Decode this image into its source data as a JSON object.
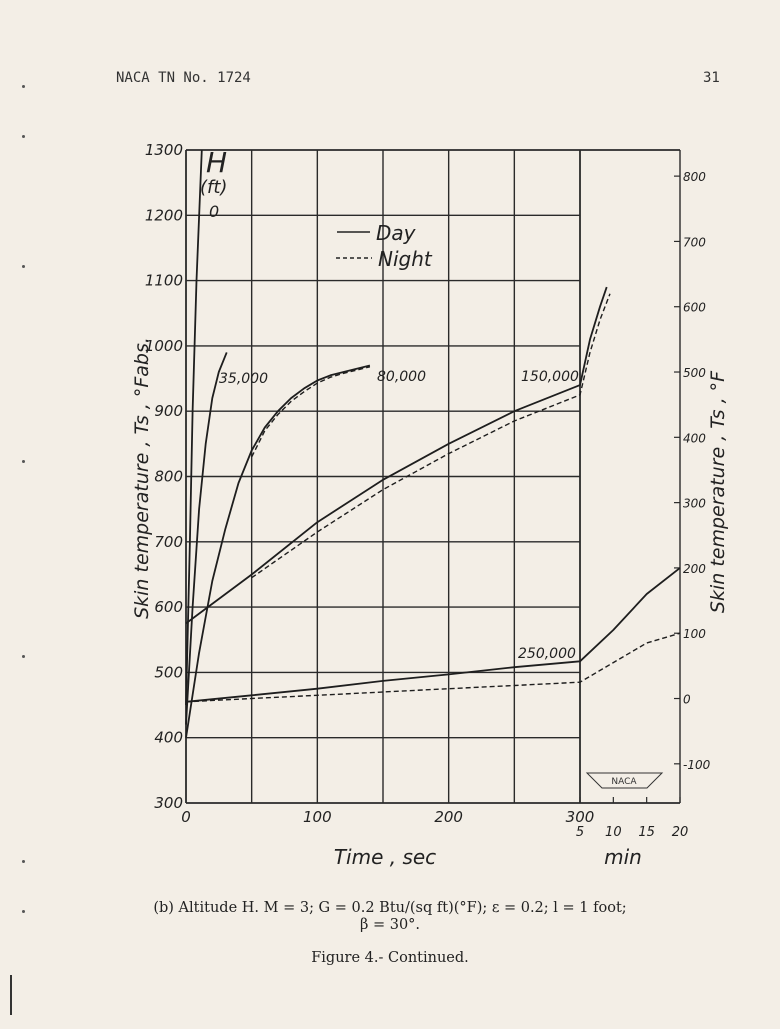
{
  "header": {
    "doc_id": "NACA TN No. 1724",
    "page_number": "31"
  },
  "caption": {
    "line1": "(b)  Altitude  H.  M = 3;  G = 0.2 Btu/(sq ft)(°F);  ε = 0.2;  l = 1 foot;",
    "line2": "β  =  30°.",
    "figure": "Figure 4.-  Continued."
  },
  "chart_data": {
    "type": "line",
    "xlabel": "Time  ,  sec",
    "xlabel_min": "min",
    "ylabel_left": "Skin   temperature  ,   Ts  ,   °Fabs.",
    "ylabel_right": "Skin   temperature  ,   Ts  ,   °F",
    "param_label_main": "H",
    "param_label_unit": "(ft)",
    "x_sec_range": [
      0,
      300
    ],
    "x_min_range": [
      5,
      20
    ],
    "ylim": [
      300,
      1300
    ],
    "ylim_right": [
      -160,
      840
    ],
    "grid": true,
    "x_ticks_sec": [
      "0",
      "100",
      "200",
      "300"
    ],
    "x_ticks_min": [
      "5",
      "10",
      "15",
      "20"
    ],
    "y_ticks_left": [
      "300",
      "400",
      "500",
      "600",
      "700",
      "800",
      "900",
      "1000",
      "1100",
      "1200",
      "1300"
    ],
    "y_ticks_right": [
      "-100",
      "0",
      "100",
      "200",
      "300",
      "400",
      "500",
      "600",
      "700",
      "800"
    ],
    "legend": {
      "position": "top-center",
      "entries": [
        {
          "label": "Day",
          "style": "solid"
        },
        {
          "label": "Night",
          "style": "dashed"
        }
      ]
    },
    "stamp": "NACA",
    "series": [
      {
        "label": "0",
        "condition": "day",
        "points": [
          [
            0,
            450
          ],
          [
            3,
            700
          ],
          [
            5,
            900
          ],
          [
            8,
            1100
          ],
          [
            12,
            1300
          ]
        ]
      },
      {
        "label": "35,000",
        "condition": "day",
        "points": [
          [
            0,
            420
          ],
          [
            5,
            600
          ],
          [
            10,
            750
          ],
          [
            15,
            850
          ],
          [
            20,
            920
          ],
          [
            25,
            960
          ],
          [
            31,
            990
          ]
        ]
      },
      {
        "label": "80,000",
        "condition": "day",
        "points": [
          [
            0,
            400
          ],
          [
            10,
            530
          ],
          [
            20,
            640
          ],
          [
            30,
            720
          ],
          [
            40,
            790
          ],
          [
            50,
            840
          ],
          [
            60,
            875
          ],
          [
            70,
            900
          ],
          [
            80,
            920
          ],
          [
            90,
            935
          ],
          [
            100,
            947
          ],
          [
            110,
            955
          ],
          [
            120,
            960
          ],
          [
            130,
            965
          ],
          [
            140,
            970
          ]
        ]
      },
      {
        "label": "80,000",
        "condition": "night",
        "points": [
          [
            50,
            830
          ],
          [
            60,
            870
          ],
          [
            70,
            895
          ],
          [
            80,
            915
          ],
          [
            90,
            930
          ],
          [
            100,
            943
          ],
          [
            110,
            952
          ],
          [
            120,
            958
          ],
          [
            130,
            963
          ],
          [
            140,
            968
          ]
        ]
      },
      {
        "label": "150,000",
        "condition": "day",
        "points": [
          [
            0,
            575
          ],
          [
            50,
            650
          ],
          [
            100,
            730
          ],
          [
            150,
            795
          ],
          [
            200,
            850
          ],
          [
            250,
            900
          ],
          [
            300,
            940
          ],
          [
            5,
            940
          ],
          [
            6.5,
            1010
          ],
          [
            8,
            1060
          ],
          [
            9,
            1090
          ]
        ]
      },
      {
        "label": "150,000",
        "condition": "night",
        "points": [
          [
            50,
            645
          ],
          [
            100,
            715
          ],
          [
            150,
            780
          ],
          [
            200,
            835
          ],
          [
            250,
            885
          ],
          [
            300,
            925
          ],
          [
            5,
            925
          ],
          [
            6.5,
            990
          ],
          [
            8,
            1040
          ],
          [
            9.5,
            1080
          ]
        ]
      },
      {
        "label": "250,000",
        "condition": "day",
        "points": [
          [
            0,
            455
          ],
          [
            50,
            465
          ],
          [
            100,
            475
          ],
          [
            150,
            487
          ],
          [
            200,
            497
          ],
          [
            250,
            508
          ],
          [
            300,
            517
          ],
          [
            5,
            517
          ],
          [
            10,
            565
          ],
          [
            15,
            620
          ],
          [
            20,
            660
          ]
        ]
      },
      {
        "label": "250,000",
        "condition": "night",
        "points": [
          [
            0,
            455
          ],
          [
            50,
            460
          ],
          [
            100,
            465
          ],
          [
            150,
            470
          ],
          [
            200,
            475
          ],
          [
            250,
            480
          ],
          [
            300,
            485
          ],
          [
            5,
            485
          ],
          [
            10,
            515
          ],
          [
            15,
            545
          ],
          [
            20,
            560
          ]
        ]
      }
    ]
  }
}
